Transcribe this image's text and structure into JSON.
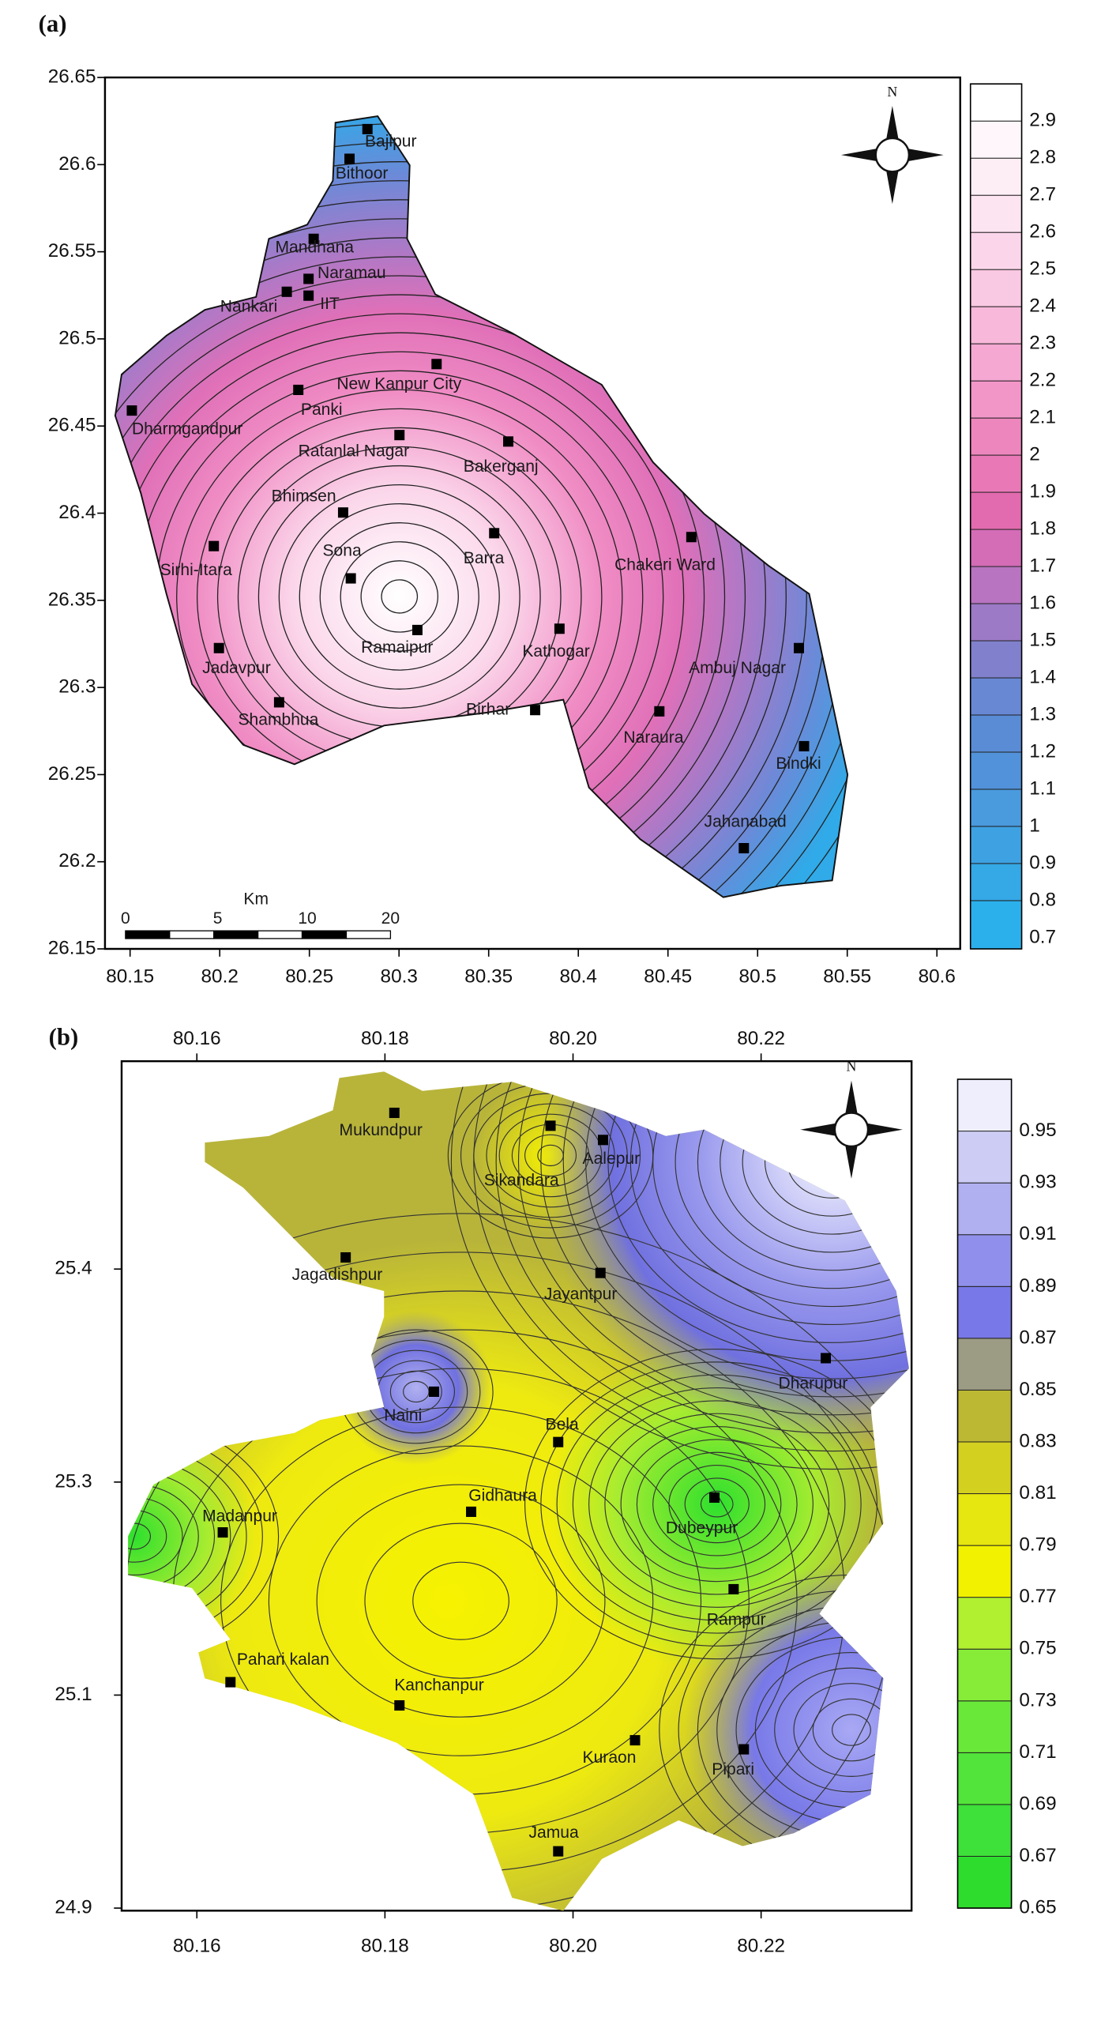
{
  "panels": [
    {
      "type": "contour_map",
      "label": "(a)",
      "north": "N",
      "xlim": [
        80.136,
        80.613
      ],
      "xticks": [
        80.15,
        80.2,
        80.25,
        80.3,
        80.35,
        80.4,
        80.45,
        80.5,
        80.55,
        80.6
      ],
      "ylim": [
        26.15,
        26.65
      ],
      "yticks": [
        26.15,
        26.2,
        26.25,
        26.3,
        26.35,
        26.4,
        26.45,
        26.5,
        26.55,
        26.6,
        26.65
      ],
      "colorbar": {
        "lim": [
          0.67,
          3.0
        ],
        "ticks": [
          0.7,
          0.8,
          0.9,
          1,
          1.1,
          1.2,
          1.3,
          1.4,
          1.5,
          1.6,
          1.7,
          1.8,
          1.9,
          2,
          2.1,
          2.2,
          2.3,
          2.4,
          2.5,
          2.6,
          2.7,
          2.8,
          2.9
        ],
        "colors": [
          "#2bb0ec",
          "#35a8e6",
          "#3ea2e2",
          "#4a9ade",
          "#5292da",
          "#5a8cd6",
          "#6888d4",
          "#8080cc",
          "#9c7ac6",
          "#b874c0",
          "#d46cb6",
          "#e26aae",
          "#e878b6",
          "#ee86be",
          "#f296c8",
          "#f5a8d2",
          "#f7b8da",
          "#f9c8e2",
          "#fbd6ea",
          "#fce4f0",
          "#fdeef5",
          "#fef6fa",
          "#ffffff"
        ]
      },
      "scale_bar": {
        "unit": "Km",
        "ticks": [
          0,
          5,
          10,
          20
        ]
      },
      "places": [
        "Bajipur",
        "Bithoor",
        "Mandhana",
        "Naramau",
        "Nankari",
        "IIT",
        "New Kanpur City",
        "Panki",
        "Dharmgandpur",
        "Ratanlal Nagar",
        "Bakerganj",
        "Bhimsen",
        "Sona",
        "Barra",
        "Chakeri Ward",
        "Sirhi-Itara",
        "Ramaipur",
        "Kathogar",
        "Jadavpur",
        "Ambuj Nagar",
        "Shambhua",
        "Birhar",
        "Naraura",
        "Bindki",
        "Jahanabad"
      ]
    },
    {
      "type": "contour_map",
      "label": "(b)",
      "north": "N",
      "xlim": [
        80.152,
        80.236
      ],
      "xticks": [
        80.16,
        80.18,
        {
          "value": 80.2,
          "label": "80.20"
        },
        80.22
      ],
      "yticks": [
        25.4,
        25.3,
        25.1,
        24.9
      ],
      "colorbar": {
        "lim": [
          0.65,
          0.97
        ],
        "ticks": [
          0.65,
          0.67,
          0.69,
          0.71,
          0.73,
          0.75,
          0.77,
          0.79,
          0.81,
          0.83,
          0.85,
          0.87,
          0.89,
          0.91,
          0.93,
          0.95
        ],
        "colors": [
          "#2edc2e",
          "#3ee03a",
          "#52e43a",
          "#6ae83a",
          "#86ec38",
          "#b0f030",
          "#f2f200",
          "#e6e610",
          "#d4d020",
          "#bcb834",
          "#9c9c84",
          "#7878e8",
          "#9090ec",
          "#b0b0f0",
          "#ccccf4",
          "#eeeefc"
        ]
      },
      "places": [
        "Mukundpur",
        "Sikandara",
        "Aalepur",
        "Jagadishpur",
        "Jayantpur",
        "Dharupur",
        "Naini",
        "Bela",
        "Gidhaura",
        "Madanpur",
        "Dubeypur",
        "Rampur",
        "Pahari kalan",
        "Kanchanpur",
        "Kuraon",
        "Pipari",
        "Jamua"
      ]
    }
  ]
}
